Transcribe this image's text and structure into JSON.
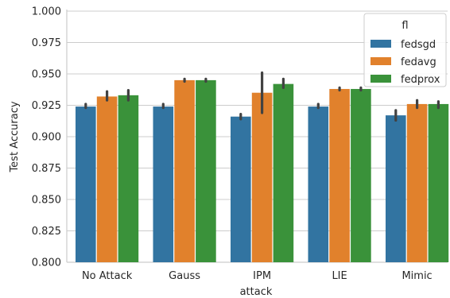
{
  "chart_data": {
    "type": "bar",
    "title": "",
    "xlabel": "attack",
    "ylabel": "Test Accuracy",
    "ylim": [
      0.8,
      1.0
    ],
    "yticks": [
      "0.800",
      "0.825",
      "0.850",
      "0.875",
      "0.900",
      "0.925",
      "0.950",
      "0.975",
      "1.000"
    ],
    "grid": "horizontal",
    "legend": {
      "title": "fl",
      "placement": "top-right"
    },
    "categories": [
      "No Attack",
      "Gauss",
      "IPM",
      "LIE",
      "Mimic"
    ],
    "series": [
      {
        "name": "fedsgd",
        "color": "#3274a1",
        "values": [
          0.924,
          0.924,
          0.916,
          0.924,
          0.917
        ],
        "ci": [
          [
            0.923,
            0.926
          ],
          [
            0.923,
            0.926
          ],
          [
            0.914,
            0.918
          ],
          [
            0.923,
            0.926
          ],
          [
            0.913,
            0.921
          ]
        ]
      },
      {
        "name": "fedavg",
        "color": "#e1812c",
        "values": [
          0.932,
          0.945,
          0.935,
          0.938,
          0.926
        ],
        "ci": [
          [
            0.929,
            0.936
          ],
          [
            0.944,
            0.946
          ],
          [
            0.919,
            0.951
          ],
          [
            0.937,
            0.939
          ],
          [
            0.923,
            0.929
          ]
        ]
      },
      {
        "name": "fedprox",
        "color": "#3a923a",
        "values": [
          0.933,
          0.945,
          0.942,
          0.938,
          0.926
        ],
        "ci": [
          [
            0.929,
            0.937
          ],
          [
            0.944,
            0.946
          ],
          [
            0.939,
            0.946
          ],
          [
            0.937,
            0.939
          ],
          [
            0.923,
            0.928
          ]
        ]
      }
    ]
  }
}
